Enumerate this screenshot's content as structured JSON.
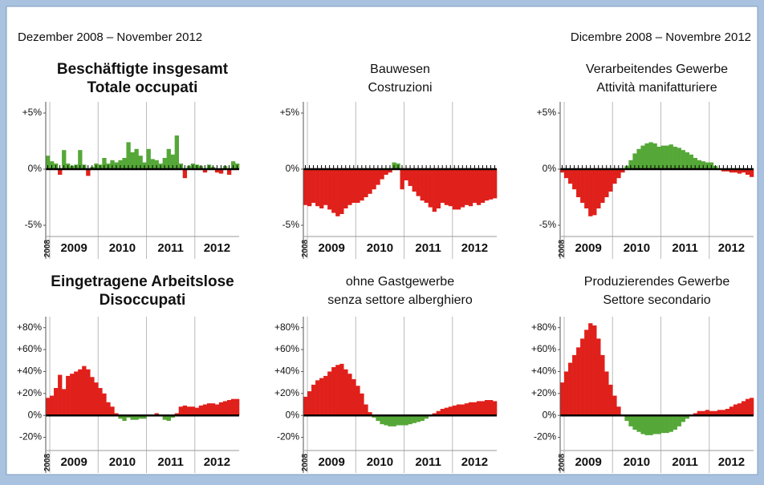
{
  "header": {
    "left": "Dezember 2008 – November 2012",
    "right": "Dicembre 2008 – Novembre 2012"
  },
  "chart_data": [
    {
      "type": "bar",
      "title": [
        "Beschäftigte insgesamt",
        "Totale occupati"
      ],
      "title_bold": true,
      "month_ticks": true,
      "positive_color": "#55a838",
      "negative_color": "#e0201b",
      "values": [
        1.2,
        0.7,
        0.5,
        -0.5,
        1.7,
        0.5,
        0.3,
        0.4,
        1.7,
        0.4,
        -0.6,
        0.2,
        0.5,
        0.4,
        1.0,
        0.5,
        0.8,
        0.6,
        0.8,
        1.0,
        2.4,
        1.5,
        1.8,
        1.2,
        0.6,
        1.8,
        0.9,
        0.8,
        0.5,
        1.0,
        1.8,
        1.3,
        3.0,
        0.5,
        -0.8,
        0.3,
        0.5,
        0.4,
        0.3,
        -0.3,
        0.4,
        0.2,
        -0.3,
        -0.4,
        0.3,
        -0.5,
        0.7,
        0.5
      ],
      "xlim": [
        0,
        48
      ],
      "xticks": [
        {
          "value": 0,
          "label": "2008"
        },
        {
          "value": 1,
          "label": "2009"
        },
        {
          "value": 13,
          "label": "2010"
        },
        {
          "value": 25,
          "label": "2011"
        },
        {
          "value": 37,
          "label": "2012"
        }
      ],
      "ylim": [
        -6,
        6
      ],
      "yticks": [
        {
          "value": 5,
          "label": "+5%"
        },
        {
          "value": 0,
          "label": "0%"
        },
        {
          "value": -5,
          "label": "-5%"
        }
      ]
    },
    {
      "type": "bar",
      "title": [
        "Bauwesen",
        "Costruzioni"
      ],
      "title_bold": false,
      "month_ticks": true,
      "positive_color": "#55a838",
      "negative_color": "#e0201b",
      "values": [
        -3.2,
        -3.3,
        -3.0,
        -3.3,
        -3.5,
        -3.2,
        -3.6,
        -3.9,
        -4.2,
        -4.0,
        -3.5,
        -3.2,
        -3.0,
        -3.0,
        -2.8,
        -2.5,
        -2.2,
        -1.8,
        -1.4,
        -0.9,
        -0.5,
        -0.3,
        0.6,
        0.5,
        -1.8,
        -1.0,
        -1.5,
        -2.0,
        -2.4,
        -2.8,
        -3.0,
        -3.4,
        -3.8,
        -3.5,
        -3.0,
        -3.2,
        -3.3,
        -3.6,
        -3.6,
        -3.4,
        -3.2,
        -3.3,
        -3.0,
        -3.2,
        -3.0,
        -2.8,
        -2.7,
        -2.6
      ],
      "xlim": [
        0,
        48
      ],
      "xticks": [
        {
          "value": 0,
          "label": "2008"
        },
        {
          "value": 1,
          "label": "2009"
        },
        {
          "value": 13,
          "label": "2010"
        },
        {
          "value": 25,
          "label": "2011"
        },
        {
          "value": 37,
          "label": "2012"
        }
      ],
      "ylim": [
        -6,
        6
      ],
      "yticks": [
        {
          "value": 5,
          "label": "+5%"
        },
        {
          "value": 0,
          "label": "0%"
        },
        {
          "value": -5,
          "label": "-5%"
        }
      ]
    },
    {
      "type": "bar",
      "title": [
        "Verarbeitendes Gewerbe",
        "Attività manifatturiere"
      ],
      "title_bold": false,
      "month_ticks": true,
      "positive_color": "#55a838",
      "negative_color": "#e0201b",
      "values": [
        -0.3,
        -0.8,
        -1.3,
        -1.8,
        -2.5,
        -3.0,
        -3.5,
        -4.2,
        -4.1,
        -3.5,
        -3.0,
        -2.5,
        -2.0,
        -1.3,
        -0.8,
        -0.3,
        0.3,
        0.8,
        1.4,
        1.8,
        2.1,
        2.3,
        2.4,
        2.3,
        2.0,
        2.1,
        2.1,
        2.2,
        2.0,
        1.9,
        1.7,
        1.5,
        1.3,
        1.0,
        0.8,
        0.7,
        0.6,
        0.6,
        0.3,
        0.0,
        -0.2,
        -0.2,
        -0.3,
        -0.3,
        -0.4,
        -0.3,
        -0.5,
        -0.7
      ],
      "xlim": [
        0,
        48
      ],
      "xticks": [
        {
          "value": 0,
          "label": "2008"
        },
        {
          "value": 1,
          "label": "2009"
        },
        {
          "value": 13,
          "label": "2010"
        },
        {
          "value": 25,
          "label": "2011"
        },
        {
          "value": 37,
          "label": "2012"
        }
      ],
      "ylim": [
        -6,
        6
      ],
      "yticks": [
        {
          "value": 5,
          "label": "+5%"
        },
        {
          "value": 0,
          "label": "0%"
        },
        {
          "value": -5,
          "label": "-5%"
        }
      ]
    },
    {
      "type": "bar",
      "title": [
        "Eingetragene Arbeitslose",
        "Disoccupati"
      ],
      "title_bold": true,
      "month_ticks": false,
      "positive_color": "#e0201b",
      "negative_color": "#55a838",
      "values": [
        16,
        18,
        25,
        37,
        24,
        36,
        38,
        40,
        42,
        45,
        42,
        35,
        30,
        25,
        20,
        12,
        8,
        2,
        -3,
        -5,
        -2,
        -4,
        -4,
        -3,
        -3,
        -1,
        -1,
        2,
        -1,
        -4,
        -5,
        -2,
        2,
        8,
        9,
        8,
        8,
        7,
        9,
        10,
        11,
        11,
        10,
        12,
        13,
        14,
        15,
        15
      ],
      "xlim": [
        0,
        48
      ],
      "xticks": [
        {
          "value": 0,
          "label": "2008"
        },
        {
          "value": 1,
          "label": "2009"
        },
        {
          "value": 13,
          "label": "2010"
        },
        {
          "value": 25,
          "label": "2011"
        },
        {
          "value": 37,
          "label": "2012"
        }
      ],
      "ylim": [
        -32,
        90
      ],
      "yticks": [
        {
          "value": 80,
          "label": "+80%"
        },
        {
          "value": 60,
          "label": "+60%"
        },
        {
          "value": 40,
          "label": "+40%"
        },
        {
          "value": 20,
          "label": "+20%"
        },
        {
          "value": 0,
          "label": "0%"
        },
        {
          "value": -20,
          "label": "-20%"
        }
      ]
    },
    {
      "type": "bar",
      "title": [
        "ohne Gastgewerbe",
        "senza settore alberghiero"
      ],
      "title_bold": false,
      "month_ticks": false,
      "positive_color": "#e0201b",
      "negative_color": "#55a838",
      "values": [
        17,
        22,
        28,
        32,
        34,
        36,
        40,
        44,
        46,
        47,
        42,
        38,
        33,
        27,
        20,
        10,
        3,
        -2,
        -5,
        -8,
        -9,
        -10,
        -10,
        -9,
        -9,
        -9,
        -8,
        -7,
        -6,
        -5,
        -3,
        -1,
        2,
        4,
        6,
        7,
        8,
        9,
        10,
        10,
        11,
        12,
        12,
        13,
        13,
        14,
        14,
        13
      ],
      "xlim": [
        0,
        48
      ],
      "xticks": [
        {
          "value": 0,
          "label": "2008"
        },
        {
          "value": 1,
          "label": "2009"
        },
        {
          "value": 13,
          "label": "2010"
        },
        {
          "value": 25,
          "label": "2011"
        },
        {
          "value": 37,
          "label": "2012"
        }
      ],
      "ylim": [
        -32,
        90
      ],
      "yticks": [
        {
          "value": 80,
          "label": "+80%"
        },
        {
          "value": 60,
          "label": "+60%"
        },
        {
          "value": 40,
          "label": "+40%"
        },
        {
          "value": 20,
          "label": "+20%"
        },
        {
          "value": 0,
          "label": "0%"
        },
        {
          "value": -20,
          "label": "-20%"
        }
      ]
    },
    {
      "type": "bar",
      "title": [
        "Produzierendes Gewerbe",
        "Settore secondario"
      ],
      "title_bold": false,
      "month_ticks": false,
      "positive_color": "#e0201b",
      "negative_color": "#55a838",
      "values": [
        30,
        40,
        48,
        55,
        62,
        70,
        78,
        84,
        82,
        70,
        55,
        40,
        28,
        18,
        8,
        0,
        -5,
        -10,
        -13,
        -15,
        -17,
        -18,
        -18,
        -17,
        -17,
        -16,
        -16,
        -15,
        -13,
        -10,
        -6,
        -3,
        0,
        2,
        4,
        4,
        5,
        4,
        4,
        5,
        5,
        6,
        8,
        10,
        11,
        13,
        15,
        16
      ],
      "xlim": [
        0,
        48
      ],
      "xticks": [
        {
          "value": 0,
          "label": "2008"
        },
        {
          "value": 1,
          "label": "2009"
        },
        {
          "value": 13,
          "label": "2010"
        },
        {
          "value": 25,
          "label": "2011"
        },
        {
          "value": 37,
          "label": "2012"
        }
      ],
      "ylim": [
        -32,
        90
      ],
      "yticks": [
        {
          "value": 80,
          "label": "+80%"
        },
        {
          "value": 60,
          "label": "+60%"
        },
        {
          "value": 40,
          "label": "+40%"
        },
        {
          "value": 20,
          "label": "+20%"
        },
        {
          "value": 0,
          "label": "0%"
        },
        {
          "value": -20,
          "label": "-20%"
        }
      ]
    }
  ]
}
